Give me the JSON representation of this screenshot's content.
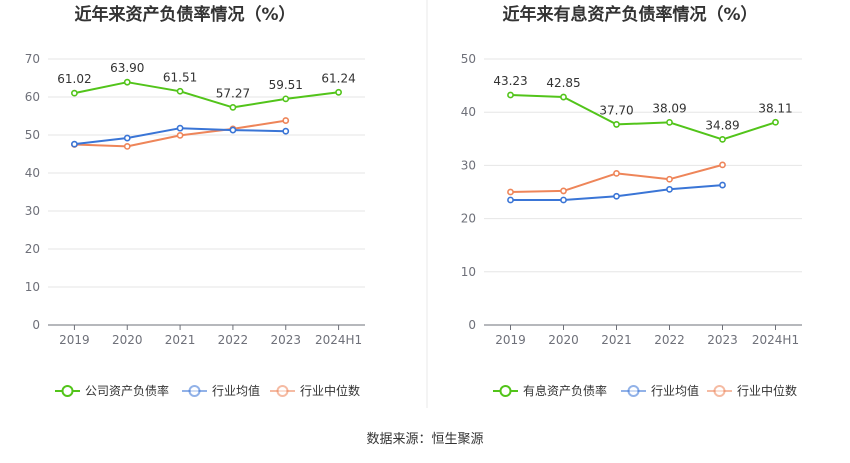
{
  "source": "数据来源：恒生聚源",
  "chart_data": [
    {
      "type": "line",
      "title": "近年来资产负债率情况（%）",
      "categories": [
        "2019",
        "2020",
        "2021",
        "2022",
        "2023",
        "2024H1"
      ],
      "ylim": [
        0,
        70
      ],
      "yticks": [
        0,
        10,
        20,
        30,
        40,
        50,
        60,
        70
      ],
      "grid": true,
      "legend_position": "bottom",
      "series": [
        {
          "name": "公司资产负债率",
          "color": "#52c41a",
          "values": [
            61.02,
            63.9,
            61.51,
            57.27,
            59.51,
            61.24
          ],
          "labels": [
            "61.02",
            "63.90",
            "61.51",
            "57.27",
            "59.51",
            "61.24"
          ]
        },
        {
          "name": "行业均值",
          "color": "#3a75d6",
          "values": [
            47.6,
            49.2,
            51.8,
            51.3,
            51.0,
            null
          ]
        },
        {
          "name": "行业中位数",
          "color": "#ee8559",
          "values": [
            47.5,
            47.0,
            49.9,
            51.6,
            53.8,
            null
          ]
        }
      ]
    },
    {
      "type": "line",
      "title": "近年来有息资产负债率情况（%）",
      "categories": [
        "2019",
        "2020",
        "2021",
        "2022",
        "2023",
        "2024H1"
      ],
      "ylim": [
        0,
        50
      ],
      "yticks": [
        0,
        10,
        20,
        30,
        40,
        50
      ],
      "grid": true,
      "legend_position": "bottom",
      "series": [
        {
          "name": "有息资产负债率",
          "color": "#52c41a",
          "values": [
            43.23,
            42.85,
            37.7,
            38.09,
            34.89,
            38.11
          ],
          "labels": [
            "43.23",
            "42.85",
            "37.70",
            "38.09",
            "34.89",
            "38.11"
          ]
        },
        {
          "name": "行业均值",
          "color": "#3a75d6",
          "values": [
            23.5,
            23.5,
            24.2,
            25.5,
            26.3,
            null
          ]
        },
        {
          "name": "行业中位数",
          "color": "#ee8559",
          "values": [
            25.0,
            25.2,
            28.5,
            27.4,
            30.1,
            null
          ]
        }
      ]
    }
  ]
}
